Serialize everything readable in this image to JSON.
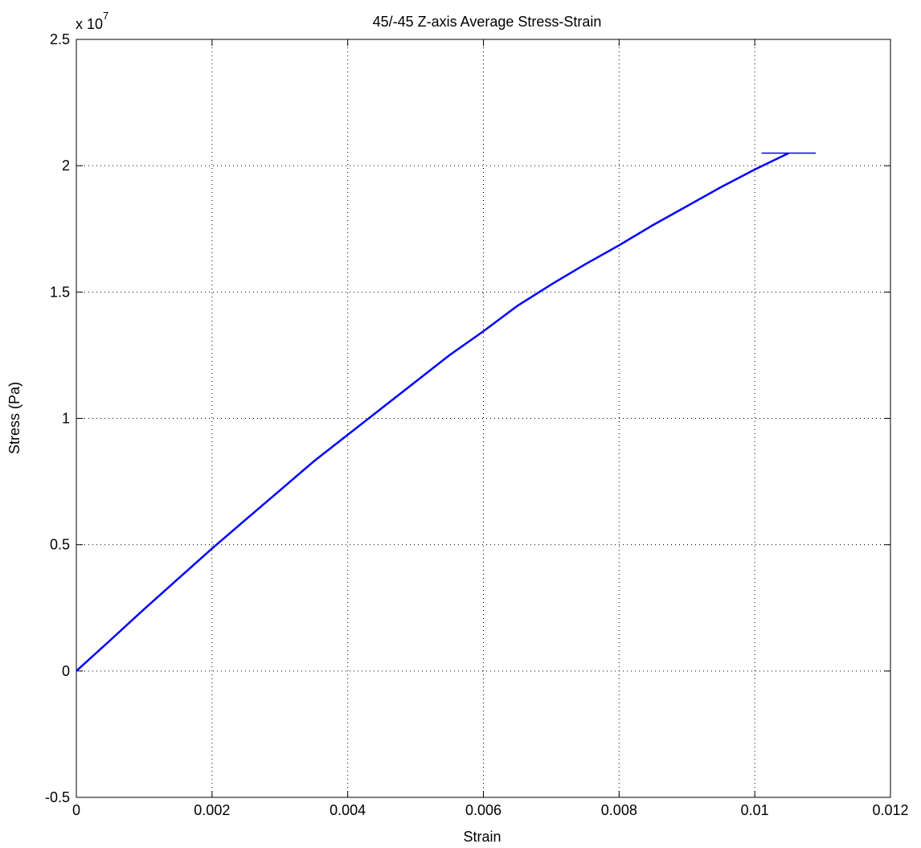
{
  "chart_data": {
    "type": "line",
    "title": "45/-45 Z-axis Average Stress-Strain",
    "xlabel": "Strain",
    "ylabel": "Stress (Pa)",
    "y_exponent_label": "x 10",
    "y_exponent_power": "7",
    "xlim": [
      0,
      0.012
    ],
    "ylim": [
      -0.5,
      2.5
    ],
    "x_ticks": [
      "0",
      "0.002",
      "0.004",
      "0.006",
      "0.008",
      "0.01",
      "0.012"
    ],
    "y_ticks": [
      "-0.5",
      "0",
      "0.5",
      "1",
      "1.5",
      "2",
      "2.5"
    ],
    "grid": true,
    "grid_style": "dotted",
    "line_color": "#0000ff",
    "series": [
      {
        "x": [
          0,
          0.0005,
          0.001,
          0.0015,
          0.002,
          0.0025,
          0.003,
          0.0035,
          0.004,
          0.0045,
          0.005,
          0.0055,
          0.006,
          0.0065,
          0.007,
          0.0075,
          0.008,
          0.0085,
          0.009,
          0.0095,
          0.01,
          0.0105
        ],
        "y": [
          0,
          0.122,
          0.245,
          0.365,
          0.485,
          0.6,
          0.715,
          0.83,
          0.935,
          1.04,
          1.145,
          1.25,
          1.345,
          1.445,
          1.53,
          1.61,
          1.685,
          1.765,
          1.84,
          1.915,
          1.985,
          2.05
        ]
      }
    ],
    "end_marker": {
      "x": [
        0.0101,
        0.0109
      ],
      "y": 2.05
    }
  }
}
